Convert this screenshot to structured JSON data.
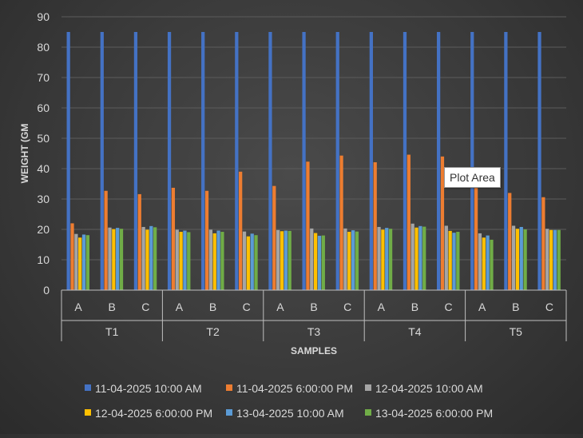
{
  "chart_data": {
    "type": "bar",
    "xlabel": "SAMPLES",
    "ylabel": "WEIGHT (GM",
    "ylim": [
      0,
      90
    ],
    "yticks": [
      0,
      10,
      20,
      30,
      40,
      50,
      60,
      70,
      80,
      90
    ],
    "grid": true,
    "legend_position": "bottom",
    "groups": [
      "T1",
      "T2",
      "T3",
      "T4",
      "T5"
    ],
    "categories": [
      "A",
      "B",
      "C"
    ],
    "series": [
      {
        "name": "11-04-2025 10:00 AM",
        "color": "#4472C4",
        "values": [
          [
            85,
            85,
            85
          ],
          [
            85,
            85,
            85
          ],
          [
            85,
            85,
            85
          ],
          [
            85,
            85,
            85
          ],
          [
            85,
            85,
            85
          ]
        ]
      },
      {
        "name": "11-04-2025 6:00:00 PM",
        "color": "#ED7D31",
        "values": [
          [
            22,
            32.7,
            31.6
          ],
          [
            33.7,
            32.7,
            39
          ],
          [
            34.3,
            42.3,
            44.3
          ],
          [
            42.1,
            44.6,
            44
          ],
          [
            37,
            32,
            30.6
          ]
        ]
      },
      {
        "name": "12-04-2025 10:00 AM",
        "color": "#A5A5A5",
        "values": [
          [
            18.5,
            20.6,
            20.8
          ],
          [
            19.9,
            19.9,
            19.3
          ],
          [
            19.8,
            20.3,
            20.3
          ],
          [
            20.8,
            21.9,
            21.2
          ],
          [
            18.7,
            21.2,
            20.2
          ]
        ]
      },
      {
        "name": "12-04-2025 6:00:00 PM",
        "color": "#FFC000",
        "values": [
          [
            17.3,
            20.1,
            19.9
          ],
          [
            19.2,
            18.7,
            17.7
          ],
          [
            19.4,
            18.8,
            19.2
          ],
          [
            19.9,
            20.6,
            19.5
          ],
          [
            17.3,
            20.2,
            19.8
          ]
        ]
      },
      {
        "name": "13-04-2025 10:00 AM",
        "color": "#5B9BD5",
        "values": [
          [
            18.3,
            20.5,
            21.1
          ],
          [
            19.6,
            19.6,
            18.6
          ],
          [
            19.6,
            17.9,
            19.7
          ],
          [
            20.5,
            21.1,
            18.9
          ],
          [
            18,
            20.8,
            19.8
          ]
        ]
      },
      {
        "name": "13-04-2025 6:00:00 PM",
        "color": "#70AD47",
        "values": [
          [
            18.1,
            20.2,
            20.7
          ],
          [
            19.1,
            19.2,
            18.1
          ],
          [
            19.5,
            18,
            19.3
          ],
          [
            20.2,
            20.9,
            19.2
          ],
          [
            16.6,
            20,
            19.8
          ]
        ]
      }
    ]
  },
  "tooltip": {
    "label": "Plot Area"
  }
}
